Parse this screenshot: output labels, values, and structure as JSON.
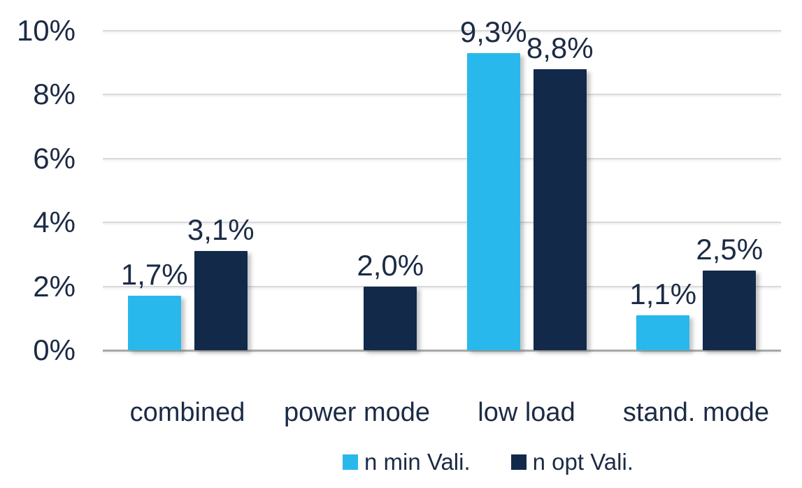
{
  "chart_data": {
    "type": "bar",
    "title": "",
    "xlabel": "",
    "ylabel": "",
    "categories": [
      "combined",
      "power mode",
      "low load",
      "stand. mode"
    ],
    "series": [
      {
        "name": "n min Vali.",
        "color": "#29B8EC",
        "values": [
          1.7,
          0,
          9.3,
          1.1
        ],
        "data_labels": [
          "1,7%",
          "",
          "9,3%",
          "1,1%"
        ]
      },
      {
        "name": "n opt Vali.",
        "color": "#12294A",
        "values": [
          3.1,
          2.0,
          8.8,
          2.5
        ],
        "data_labels": [
          "3,1%",
          "2,0%",
          "8,8%",
          "2,5%"
        ]
      }
    ],
    "y_ticks": [
      {
        "label": "10%",
        "value": 10
      },
      {
        "label": "8%",
        "value": 8
      },
      {
        "label": "6%",
        "value": 6
      },
      {
        "label": "4%",
        "value": 4
      },
      {
        "label": "2%",
        "value": 2
      },
      {
        "label": "0%",
        "value": 0
      }
    ],
    "ylim": [
      0,
      10
    ],
    "grid": true,
    "legend_position": "bottom"
  },
  "colors": {
    "text": "#1C2B45",
    "gridline": "#D9D9D9",
    "axis_line": "#A8A8A8",
    "background": "#FFFFFF",
    "series_min": "#29B8EC",
    "series_opt": "#12294A"
  }
}
